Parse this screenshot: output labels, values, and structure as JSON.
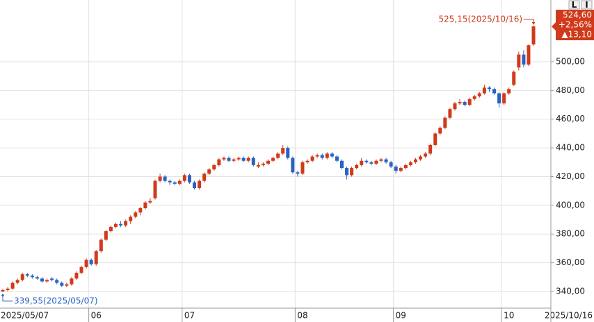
{
  "chart_data": {
    "type": "candlestick",
    "categories": [
      "2025/05/07",
      null,
      null,
      null,
      null,
      null,
      null,
      null,
      null,
      null,
      null,
      null,
      null,
      null,
      null,
      null,
      null,
      null,
      "06",
      null,
      null,
      null,
      null,
      null,
      null,
      null,
      null,
      null,
      null,
      null,
      null,
      null,
      null,
      null,
      null,
      null,
      null,
      "07",
      null,
      null,
      null,
      null,
      null,
      null,
      null,
      null,
      null,
      null,
      null,
      null,
      null,
      null,
      null,
      null,
      null,
      null,
      null,
      null,
      null,
      null,
      "08",
      null,
      null,
      null,
      null,
      null,
      null,
      null,
      null,
      null,
      null,
      null,
      null,
      null,
      null,
      null,
      null,
      null,
      null,
      null,
      "09",
      null,
      null,
      null,
      null,
      null,
      null,
      null,
      null,
      null,
      null,
      null,
      null,
      null,
      null,
      null,
      null,
      null,
      null,
      null,
      null,
      null,
      "10",
      null,
      null,
      null,
      null,
      null,
      "2025/10/16"
    ],
    "open": [
      340,
      341,
      342,
      346,
      348,
      352,
      351,
      350,
      349,
      347,
      349,
      348,
      346,
      344,
      345,
      349,
      353,
      357,
      362,
      359,
      368,
      376,
      382,
      385,
      387,
      386,
      389,
      392,
      395,
      398,
      402,
      405,
      417,
      420,
      417,
      416,
      415,
      417,
      421,
      416,
      412,
      417,
      422,
      425,
      428,
      432,
      433,
      431,
      432,
      433,
      431,
      433,
      427,
      428,
      429,
      431,
      433,
      436,
      440,
      433,
      423,
      422,
      430,
      431,
      434,
      435,
      433,
      436,
      434,
      431,
      426,
      421,
      426,
      428,
      431,
      430,
      429,
      431,
      432,
      430,
      427,
      424,
      426,
      428,
      430,
      432,
      434,
      436,
      442,
      450,
      454,
      461,
      467,
      471,
      472,
      470,
      474,
      476,
      478,
      482,
      481,
      478,
      471,
      478,
      484,
      496,
      505,
      498,
      512
    ],
    "high": [
      342,
      343,
      347,
      349,
      353,
      353,
      352,
      351,
      350,
      349,
      350,
      349,
      347,
      346,
      350,
      354,
      358,
      363,
      363,
      369,
      377,
      383,
      386,
      388,
      389,
      390,
      393,
      396,
      399,
      403,
      405,
      418,
      422,
      421,
      418,
      417,
      418,
      422,
      422,
      417,
      418,
      423,
      426,
      429,
      433,
      434,
      434,
      433,
      434,
      434,
      434,
      434,
      430,
      430,
      432,
      434,
      437,
      442,
      441,
      434,
      424,
      431,
      432,
      435,
      436,
      436,
      437,
      437,
      435,
      432,
      427,
      427,
      429,
      433,
      432,
      431,
      432,
      433,
      433,
      431,
      428,
      427,
      429,
      431,
      433,
      435,
      437,
      443,
      451,
      455,
      462,
      468,
      472,
      474,
      473,
      475,
      477,
      479,
      484,
      483,
      482,
      479,
      479,
      482,
      494,
      507,
      508,
      512,
      525.15
    ],
    "low": [
      339.55,
      340,
      341,
      345,
      347,
      350,
      349,
      348,
      346,
      346,
      347,
      345,
      343,
      343,
      344,
      348,
      352,
      356,
      358,
      358,
      367,
      375,
      381,
      384,
      385,
      385,
      387,
      391,
      393,
      397,
      401,
      404,
      416,
      416,
      414,
      414,
      414,
      416,
      415,
      411,
      411,
      416,
      421,
      424,
      427,
      431,
      430,
      430,
      431,
      430,
      430,
      427,
      426,
      427,
      428,
      430,
      432,
      435,
      432,
      422,
      420,
      421,
      429,
      430,
      433,
      432,
      432,
      433,
      430,
      425,
      418,
      420,
      425,
      427,
      429,
      428,
      428,
      430,
      429,
      426,
      422,
      423,
      425,
      427,
      429,
      431,
      433,
      435,
      441,
      449,
      453,
      460,
      466,
      470,
      469,
      469,
      473,
      475,
      477,
      479,
      477,
      468,
      470,
      477,
      483,
      494,
      496,
      497,
      511
    ],
    "close": [
      341,
      342,
      346,
      348,
      352,
      351,
      350,
      349,
      347,
      348,
      348,
      346,
      344,
      345,
      349,
      353,
      357,
      362,
      359,
      368,
      376,
      382,
      385,
      387,
      386,
      389,
      392,
      395,
      398,
      402,
      403,
      417,
      420,
      417,
      416,
      415,
      417,
      421,
      416,
      412,
      417,
      422,
      425,
      428,
      432,
      433,
      431,
      432,
      433,
      431,
      433,
      428,
      428,
      429,
      431,
      433,
      436,
      440,
      433,
      423,
      422,
      430,
      431,
      434,
      435,
      433,
      436,
      434,
      431,
      426,
      421,
      426,
      428,
      431,
      430,
      429,
      431,
      432,
      430,
      427,
      424,
      426,
      428,
      430,
      432,
      434,
      436,
      442,
      450,
      454,
      461,
      467,
      471,
      472,
      470,
      474,
      476,
      478,
      482,
      481,
      478,
      471,
      478,
      481,
      493,
      505,
      498,
      511.5,
      524.6
    ],
    "up_color": "#d03a1b",
    "down_color": "#2a62c4",
    "ylim": [
      328.4,
      543
    ],
    "yticks": [
      {
        "value": 340,
        "label": "340,00"
      },
      {
        "value": 360,
        "label": "360,00"
      },
      {
        "value": 380,
        "label": "380,00"
      },
      {
        "value": 400,
        "label": "400,00"
      },
      {
        "value": 420,
        "label": "420,00"
      },
      {
        "value": 440,
        "label": "440,00"
      },
      {
        "value": 460,
        "label": "460,00"
      },
      {
        "value": 480,
        "label": "480,00"
      },
      {
        "value": 500,
        "label": "500,00"
      }
    ],
    "grid": true,
    "annotations": [
      "525,15(2025/10/16)",
      "339,55(2025/05/07)"
    ],
    "price_box": [
      "524,60",
      "+2,56%",
      "▲13,10"
    ],
    "buttons": [
      "L",
      "I"
    ]
  }
}
